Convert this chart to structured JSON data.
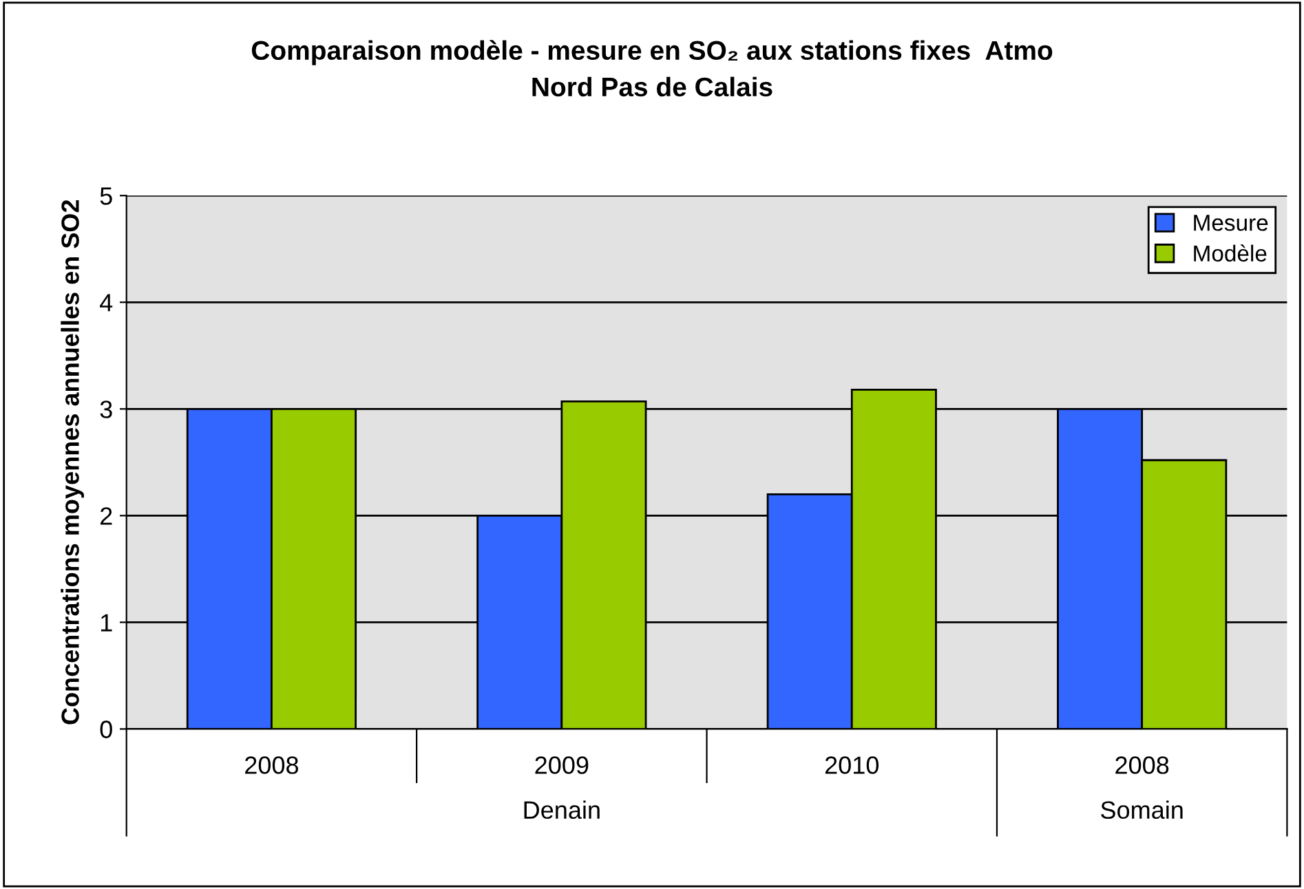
{
  "chart_data": {
    "type": "bar",
    "title": "Comparaison modèle - mesure en SO₂ aux stations fixes  Atmo\nNord Pas de Calais",
    "ylabel": "Concentrations moyennes annuelles en SO2",
    "categories": [
      "2008",
      "2009",
      "2010",
      "2008"
    ],
    "annotations": [
      "Denain",
      "Somain"
    ],
    "series": [
      {
        "name": "Mesure",
        "color": "#3366ff",
        "values": [
          3,
          2,
          2.2,
          3
        ]
      },
      {
        "name": "Modèle",
        "color": "#99cc00",
        "values": [
          3,
          3.07,
          3.18,
          2.52
        ]
      }
    ],
    "ylim": [
      0,
      5
    ],
    "yticks": [
      0,
      1,
      2,
      3,
      4,
      5
    ],
    "grid": "y",
    "legend": "top right"
  }
}
